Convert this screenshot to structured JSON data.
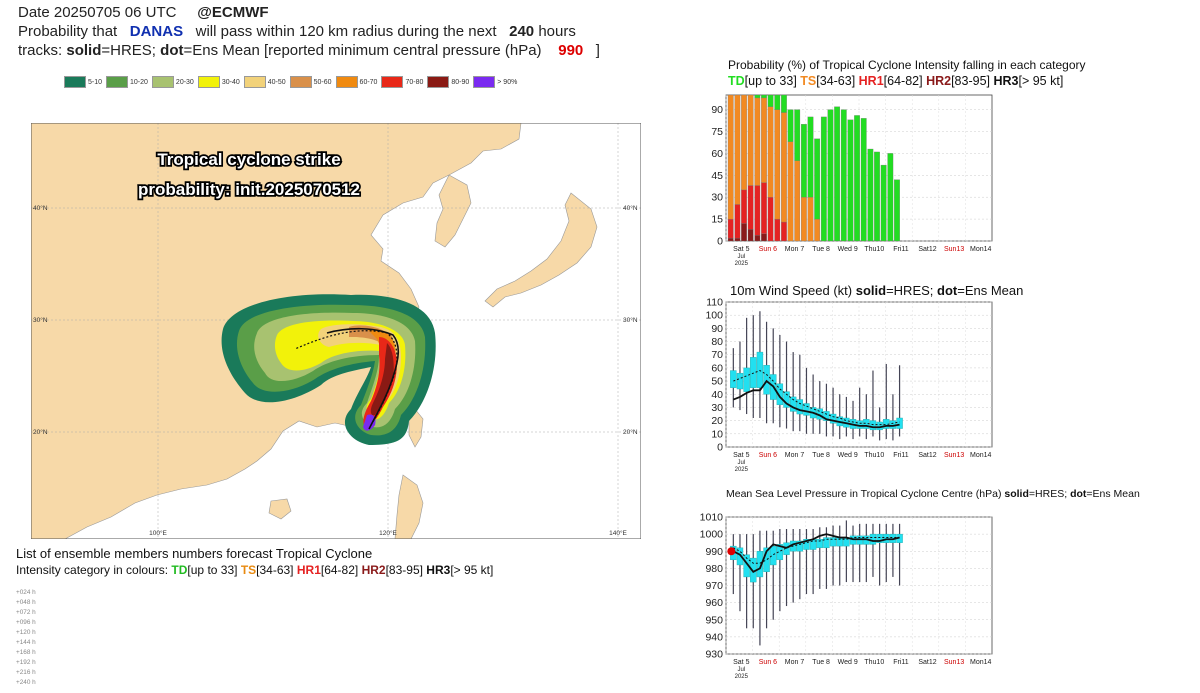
{
  "header": {
    "line1_date": "Date 20250705 06 UTC",
    "line1_org": "@ECMWF",
    "line2_pre": "Probability that",
    "line2_storm": "DANAS",
    "line2_mid": "will pass within 120 km radius during the next",
    "line2_hours": "240",
    "line2_post": "hours",
    "line3_pre": "tracks:",
    "line3_solid": "solid",
    "line3_hres": "=HRES;",
    "line3_dot": "dot",
    "line3_ens": "=Ens Mean [reported minimum central pressure (hPa)",
    "line3_pressure": "990",
    "line3_end": "]"
  },
  "legend": [
    {
      "label": "5-10",
      "color": "#1a7a5a"
    },
    {
      "label": "10-20",
      "color": "#5a9e48"
    },
    {
      "label": "20-30",
      "color": "#a8c270"
    },
    {
      "label": "30-40",
      "color": "#f2f20a"
    },
    {
      "label": "40-50",
      "color": "#f2d27a"
    },
    {
      "label": "50-60",
      "color": "#d9904a"
    },
    {
      "label": "60-70",
      "color": "#f08a10"
    },
    {
      "label": "70-80",
      "color": "#e82818"
    },
    {
      "label": "80-90",
      "color": "#8a1a14"
    },
    {
      "label": "> 90%",
      "color": "#7a2af0"
    }
  ],
  "map": {
    "overlay_line1": "Tropical cyclone strike",
    "overlay_line2": "probability: init.2025070512",
    "lon_labels": [
      "100°E",
      "120°E",
      "140°E"
    ],
    "lat_labels": [
      "40°N",
      "30°N",
      "20°N"
    ]
  },
  "ensemble": {
    "title": "List of ensemble members numbers forecast Tropical Cyclone",
    "sub_pre": "Intensity category in colours:",
    "td": "TD",
    "td_range": "[up to 33]",
    "ts": "TS",
    "ts_range": "[34-63]",
    "hr1": "HR1",
    "hr1_range": "[64-82]",
    "hr2": "HR2",
    "hr2_range": "[83-95]",
    "hr3": "HR3",
    "hr3_range": "[> 95 kt]",
    "row_labels": [
      "+024 h",
      "+048 h",
      "+072 h",
      "+096 h",
      "+120 h",
      "+144 h",
      "+168 h",
      "+192 h",
      "+216 h",
      "+240 h"
    ]
  },
  "chart_data": [
    {
      "type": "bar",
      "title_pre": "Probability (%) of Tropical Cyclone Intensity falling in each category",
      "cats": [
        {
          "name": "TD",
          "range": "[up to 33]",
          "color": "#22dd22"
        },
        {
          "name": "TS",
          "range": "[34-63]",
          "color": "#f28a22"
        },
        {
          "name": "HR1",
          "range": "[64-82]",
          "color": "#e52222"
        },
        {
          "name": "HR2",
          "range": "[83-95]",
          "color": "#8a1a1a"
        },
        {
          "name": "HR3",
          "range": "[> 95 kt]",
          "color": "#111111"
        }
      ],
      "ylim": [
        0,
        100
      ],
      "yticks": [
        0,
        15,
        30,
        45,
        60,
        75,
        90
      ],
      "xticks": [
        "Sat 5",
        "Sun 6",
        "Mon 7",
        "Tue 8",
        "Wed 9",
        "Thu10",
        "Fri11",
        "Sat12",
        "Sun13",
        "Mon14"
      ],
      "xsub": [
        "Jul",
        "2025"
      ],
      "red_ticks": [
        "Sun 6",
        "Sun13"
      ],
      "bars": [
        {
          "TD": 0,
          "TS": 85,
          "HR1": 13,
          "HR2": 2,
          "HR3": 0
        },
        {
          "TD": 0,
          "TS": 75,
          "HR1": 23,
          "HR2": 2,
          "HR3": 0
        },
        {
          "TD": 0,
          "TS": 65,
          "HR1": 23,
          "HR2": 12,
          "HR3": 0
        },
        {
          "TD": 0,
          "TS": 62,
          "HR1": 30,
          "HR2": 8,
          "HR3": 0
        },
        {
          "TD": 2,
          "TS": 60,
          "HR1": 34,
          "HR2": 4,
          "HR3": 0
        },
        {
          "TD": 2,
          "TS": 58,
          "HR1": 35,
          "HR2": 5,
          "HR3": 0
        },
        {
          "TD": 8,
          "TS": 62,
          "HR1": 30,
          "HR2": 0,
          "HR3": 0
        },
        {
          "TD": 10,
          "TS": 75,
          "HR1": 15,
          "HR2": 0,
          "HR3": 0
        },
        {
          "TD": 12,
          "TS": 75,
          "HR1": 13,
          "HR2": 0,
          "HR3": 0
        },
        {
          "TD": 22,
          "TS": 68,
          "HR1": 0,
          "HR2": 0,
          "HR3": 0
        },
        {
          "TD": 35,
          "TS": 55,
          "HR1": 0,
          "HR2": 0,
          "HR3": 0
        },
        {
          "TD": 50,
          "TS": 30,
          "HR1": 0,
          "HR2": 0,
          "HR3": 0
        },
        {
          "TD": 55,
          "TS": 30,
          "HR1": 0,
          "HR2": 0,
          "HR3": 0
        },
        {
          "TD": 55,
          "TS": 15,
          "HR1": 0,
          "HR2": 0,
          "HR3": 0
        },
        {
          "TD": 85,
          "TS": 0,
          "HR1": 0,
          "HR2": 0,
          "HR3": 0
        },
        {
          "TD": 90,
          "TS": 0,
          "HR1": 0,
          "HR2": 0,
          "HR3": 0
        },
        {
          "TD": 92,
          "TS": 0,
          "HR1": 0,
          "HR2": 0,
          "HR3": 0
        },
        {
          "TD": 90,
          "TS": 0,
          "HR1": 0,
          "HR2": 0,
          "HR3": 0
        },
        {
          "TD": 83,
          "TS": 0,
          "HR1": 0,
          "HR2": 0,
          "HR3": 0
        },
        {
          "TD": 86,
          "TS": 0,
          "HR1": 0,
          "HR2": 0,
          "HR3": 0
        },
        {
          "TD": 84,
          "TS": 0,
          "HR1": 0,
          "HR2": 0,
          "HR3": 0
        },
        {
          "TD": 63,
          "TS": 0,
          "HR1": 0,
          "HR2": 0,
          "HR3": 0
        },
        {
          "TD": 61,
          "TS": 0,
          "HR1": 0,
          "HR2": 0,
          "HR3": 0
        },
        {
          "TD": 52,
          "TS": 0,
          "HR1": 0,
          "HR2": 0,
          "HR3": 0
        },
        {
          "TD": 60,
          "TS": 0,
          "HR1": 0,
          "HR2": 0,
          "HR3": 0
        },
        {
          "TD": 42,
          "TS": 0,
          "HR1": 0,
          "HR2": 0,
          "HR3": 0
        }
      ]
    },
    {
      "type": "line",
      "title_pre": "10m Wind Speed (kt)",
      "title_solid": "solid",
      "title_mid": "=HRES;",
      "title_dot": "dot",
      "title_end": "=Ens Mean",
      "ylim": [
        0,
        110
      ],
      "yticks": [
        0,
        10,
        20,
        30,
        40,
        50,
        60,
        70,
        80,
        90,
        100,
        110
      ],
      "xticks": [
        "Sat 5",
        "Sun 6",
        "Mon 7",
        "Tue 8",
        "Wed 9",
        "Thu10",
        "Fri11",
        "Sat12",
        "Sun13",
        "Mon14"
      ],
      "xsub": [
        "Jul",
        "2025"
      ],
      "red_ticks": [
        "Sun 6",
        "Sun13"
      ],
      "box_color": "#22e0f0",
      "boxes": [
        {
          "lo": 30,
          "q1": 45,
          "q3": 58,
          "hi": 75
        },
        {
          "lo": 28,
          "q1": 44,
          "q3": 56,
          "hi": 80
        },
        {
          "lo": 25,
          "q1": 42,
          "q3": 60,
          "hi": 98
        },
        {
          "lo": 22,
          "q1": 45,
          "q3": 68,
          "hi": 100
        },
        {
          "lo": 22,
          "q1": 45,
          "q3": 72,
          "hi": 103
        },
        {
          "lo": 18,
          "q1": 40,
          "q3": 62,
          "hi": 95
        },
        {
          "lo": 18,
          "q1": 36,
          "q3": 55,
          "hi": 90
        },
        {
          "lo": 15,
          "q1": 32,
          "q3": 48,
          "hi": 85
        },
        {
          "lo": 14,
          "q1": 30,
          "q3": 42,
          "hi": 80
        },
        {
          "lo": 12,
          "q1": 27,
          "q3": 38,
          "hi": 72
        },
        {
          "lo": 12,
          "q1": 25,
          "q3": 36,
          "hi": 70
        },
        {
          "lo": 10,
          "q1": 24,
          "q3": 33,
          "hi": 60
        },
        {
          "lo": 10,
          "q1": 22,
          "q3": 30,
          "hi": 55
        },
        {
          "lo": 10,
          "q1": 21,
          "q3": 29,
          "hi": 50
        },
        {
          "lo": 8,
          "q1": 20,
          "q3": 27,
          "hi": 48
        },
        {
          "lo": 8,
          "q1": 18,
          "q3": 25,
          "hi": 45
        },
        {
          "lo": 6,
          "q1": 16,
          "q3": 23,
          "hi": 40
        },
        {
          "lo": 8,
          "q1": 15,
          "q3": 22,
          "hi": 38
        },
        {
          "lo": 6,
          "q1": 14,
          "q3": 21,
          "hi": 35
        },
        {
          "lo": 8,
          "q1": 14,
          "q3": 20,
          "hi": 45
        },
        {
          "lo": 6,
          "q1": 14,
          "q3": 21,
          "hi": 40
        },
        {
          "lo": 8,
          "q1": 13,
          "q3": 20,
          "hi": 58
        },
        {
          "lo": 5,
          "q1": 13,
          "q3": 19,
          "hi": 30
        },
        {
          "lo": 6,
          "q1": 14,
          "q3": 21,
          "hi": 63
        },
        {
          "lo": 5,
          "q1": 14,
          "q3": 20,
          "hi": 40
        },
        {
          "lo": 8,
          "q1": 14,
          "q3": 22,
          "hi": 62
        }
      ],
      "hres": [
        36,
        38,
        41,
        43,
        43,
        50,
        46,
        38,
        33,
        30,
        28,
        27,
        26,
        24,
        21,
        20,
        19,
        18,
        17,
        16,
        16,
        15,
        15,
        16,
        16,
        17
      ],
      "ens": [
        50,
        52,
        54,
        56,
        58,
        55,
        50,
        44,
        40,
        36,
        33,
        31,
        29,
        27,
        25,
        23,
        22,
        20,
        19,
        18,
        18,
        17,
        17,
        17,
        18,
        19
      ]
    },
    {
      "type": "line",
      "title_pre": "Mean Sea Level Pressure in Tropical Cyclone Centre (hPa)",
      "title_solid": "solid",
      "title_mid": "=HRES;",
      "title_dot": "dot",
      "title_end": "=Ens Mean",
      "ylim": [
        930,
        1010
      ],
      "yticks": [
        930,
        940,
        950,
        960,
        970,
        980,
        990,
        1000,
        1010
      ],
      "xticks": [
        "Sat 5",
        "Sun 6",
        "Mon 7",
        "Tue 8",
        "Wed 9",
        "Thu10",
        "Fri11",
        "Sat12",
        "Sun13",
        "Mon14"
      ],
      "xsub": [
        "Jul",
        "2025"
      ],
      "red_ticks": [
        "Sun 6",
        "Sun13"
      ],
      "box_color": "#22e0f0",
      "reported": 990,
      "boxes": [
        {
          "lo": 965,
          "q1": 985,
          "q3": 993,
          "hi": 1000
        },
        {
          "lo": 955,
          "q1": 982,
          "q3": 992,
          "hi": 1000
        },
        {
          "lo": 945,
          "q1": 975,
          "q3": 988,
          "hi": 1000
        },
        {
          "lo": 945,
          "q1": 972,
          "q3": 986,
          "hi": 1000
        },
        {
          "lo": 935,
          "q1": 975,
          "q3": 990,
          "hi": 1002
        },
        {
          "lo": 945,
          "q1": 978,
          "q3": 992,
          "hi": 1002
        },
        {
          "lo": 950,
          "q1": 982,
          "q3": 993,
          "hi": 1002
        },
        {
          "lo": 955,
          "q1": 985,
          "q3": 994,
          "hi": 1003
        },
        {
          "lo": 958,
          "q1": 988,
          "q3": 995,
          "hi": 1003
        },
        {
          "lo": 960,
          "q1": 990,
          "q3": 996,
          "hi": 1003
        },
        {
          "lo": 962,
          "q1": 990,
          "q3": 996,
          "hi": 1003
        },
        {
          "lo": 965,
          "q1": 991,
          "q3": 997,
          "hi": 1003
        },
        {
          "lo": 965,
          "q1": 991,
          "q3": 997,
          "hi": 1003
        },
        {
          "lo": 968,
          "q1": 992,
          "q3": 997,
          "hi": 1004
        },
        {
          "lo": 968,
          "q1": 992,
          "q3": 998,
          "hi": 1004
        },
        {
          "lo": 970,
          "q1": 993,
          "q3": 998,
          "hi": 1005
        },
        {
          "lo": 970,
          "q1": 993,
          "q3": 998,
          "hi": 1005
        },
        {
          "lo": 972,
          "q1": 993,
          "q3": 998,
          "hi": 1008
        },
        {
          "lo": 972,
          "q1": 994,
          "q3": 999,
          "hi": 1005
        },
        {
          "lo": 972,
          "q1": 994,
          "q3": 999,
          "hi": 1006
        },
        {
          "lo": 972,
          "q1": 994,
          "q3": 999,
          "hi": 1006
        },
        {
          "lo": 975,
          "q1": 994,
          "q3": 1000,
          "hi": 1006
        },
        {
          "lo": 970,
          "q1": 995,
          "q3": 1000,
          "hi": 1006
        },
        {
          "lo": 972,
          "q1": 995,
          "q3": 1000,
          "hi": 1006
        },
        {
          "lo": 975,
          "q1": 995,
          "q3": 1000,
          "hi": 1006
        },
        {
          "lo": 970,
          "q1": 995,
          "q3": 1000,
          "hi": 1006
        }
      ],
      "hres": [
        990,
        988,
        983,
        978,
        980,
        990,
        994,
        993,
        992,
        994,
        995,
        996,
        997,
        999,
        1000,
        999,
        998,
        998,
        997,
        997,
        997,
        996,
        996,
        997,
        997,
        998
      ],
      "ens": [
        992,
        990,
        986,
        983,
        983,
        985,
        988,
        990,
        992,
        993,
        994,
        995,
        996,
        996,
        997,
        997,
        997,
        997,
        998,
        998,
        998,
        998,
        998,
        998,
        998,
        998
      ]
    }
  ]
}
